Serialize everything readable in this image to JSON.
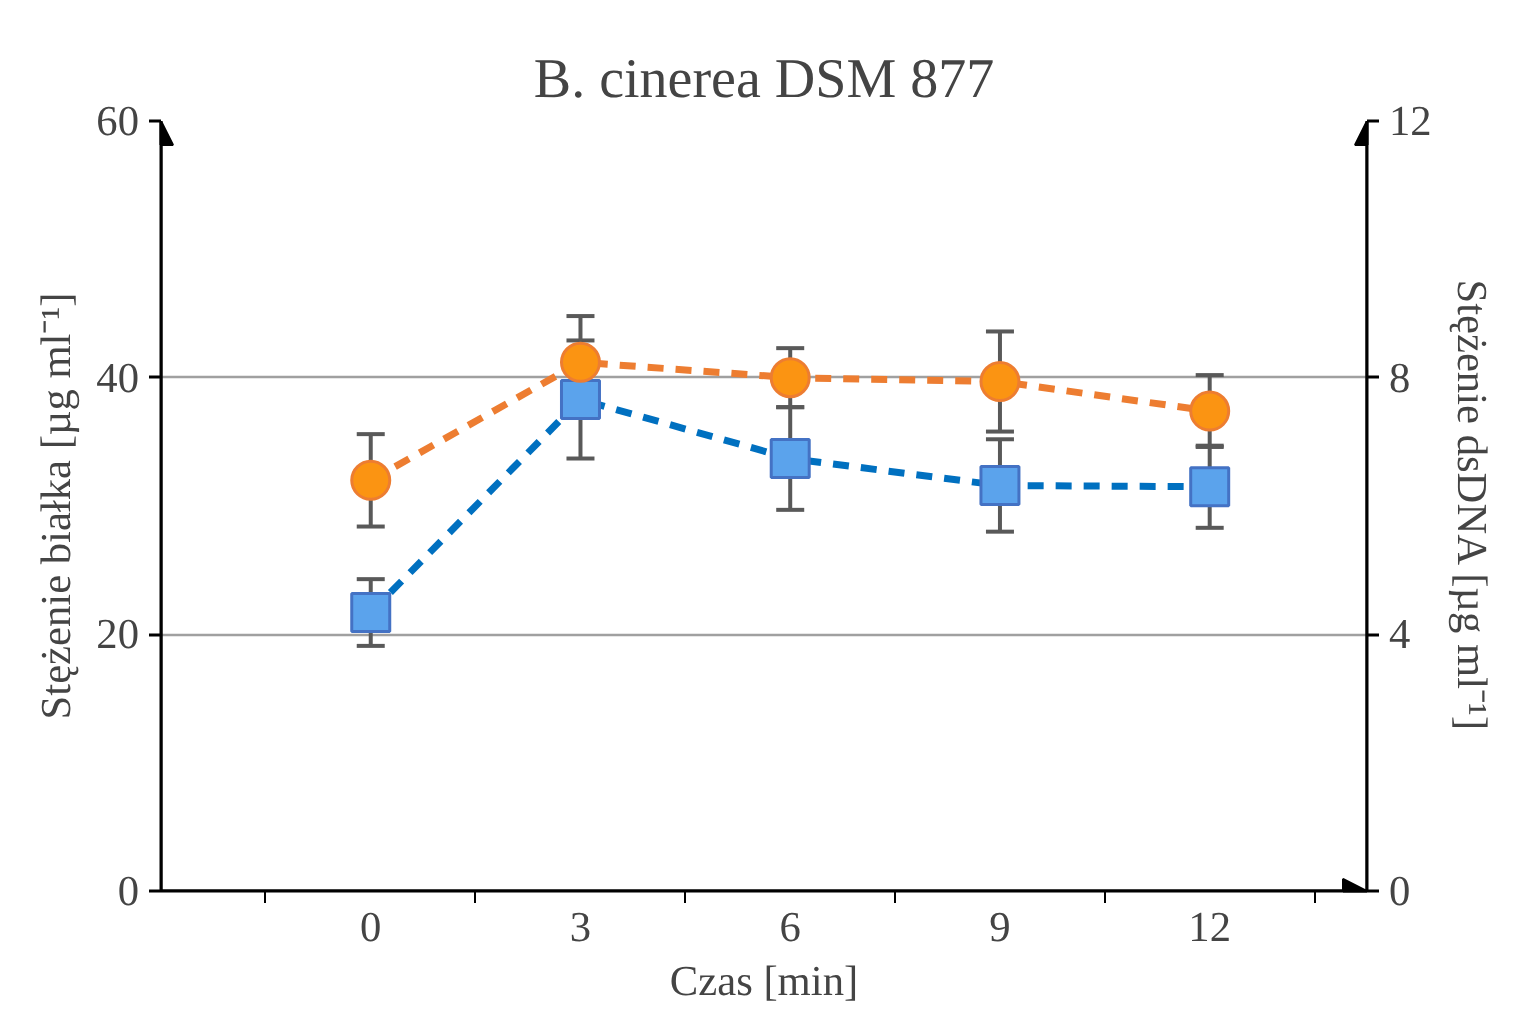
{
  "chart_data": {
    "type": "line",
    "title": "B. cinerea DSM 877",
    "xlabel": "Czas [min]",
    "ylabel": "Stężenie białka [µg ml⁻¹]",
    "y2label": "Stężenie dsDNA [µg ml⁻¹]",
    "categories": [
      "0",
      "3",
      "6",
      "9",
      "12"
    ],
    "series": [
      {
        "color": "#5ba3ec",
        "marker": "square",
        "values": [
          21.7,
          38.3,
          33.7,
          31.6,
          31.5
        ],
        "errors": [
          2.6,
          4.6,
          4.0,
          3.6,
          3.2
        ]
      },
      {
        "color": "#fb9412",
        "marker": "circle",
        "axis": "y2",
        "values": [
          6.4,
          8.24,
          8.0,
          7.94,
          7.48
        ],
        "errors": [
          0.72,
          0.72,
          0.46,
          0.78,
          0.56
        ]
      }
    ],
    "line_style": "dashed",
    "ylim": [
      0,
      60
    ],
    "yticks": [
      0,
      20,
      40,
      60
    ],
    "y2lim": [
      0,
      12
    ],
    "y2ticks": [
      0,
      4,
      8,
      12
    ],
    "grid": "y"
  }
}
